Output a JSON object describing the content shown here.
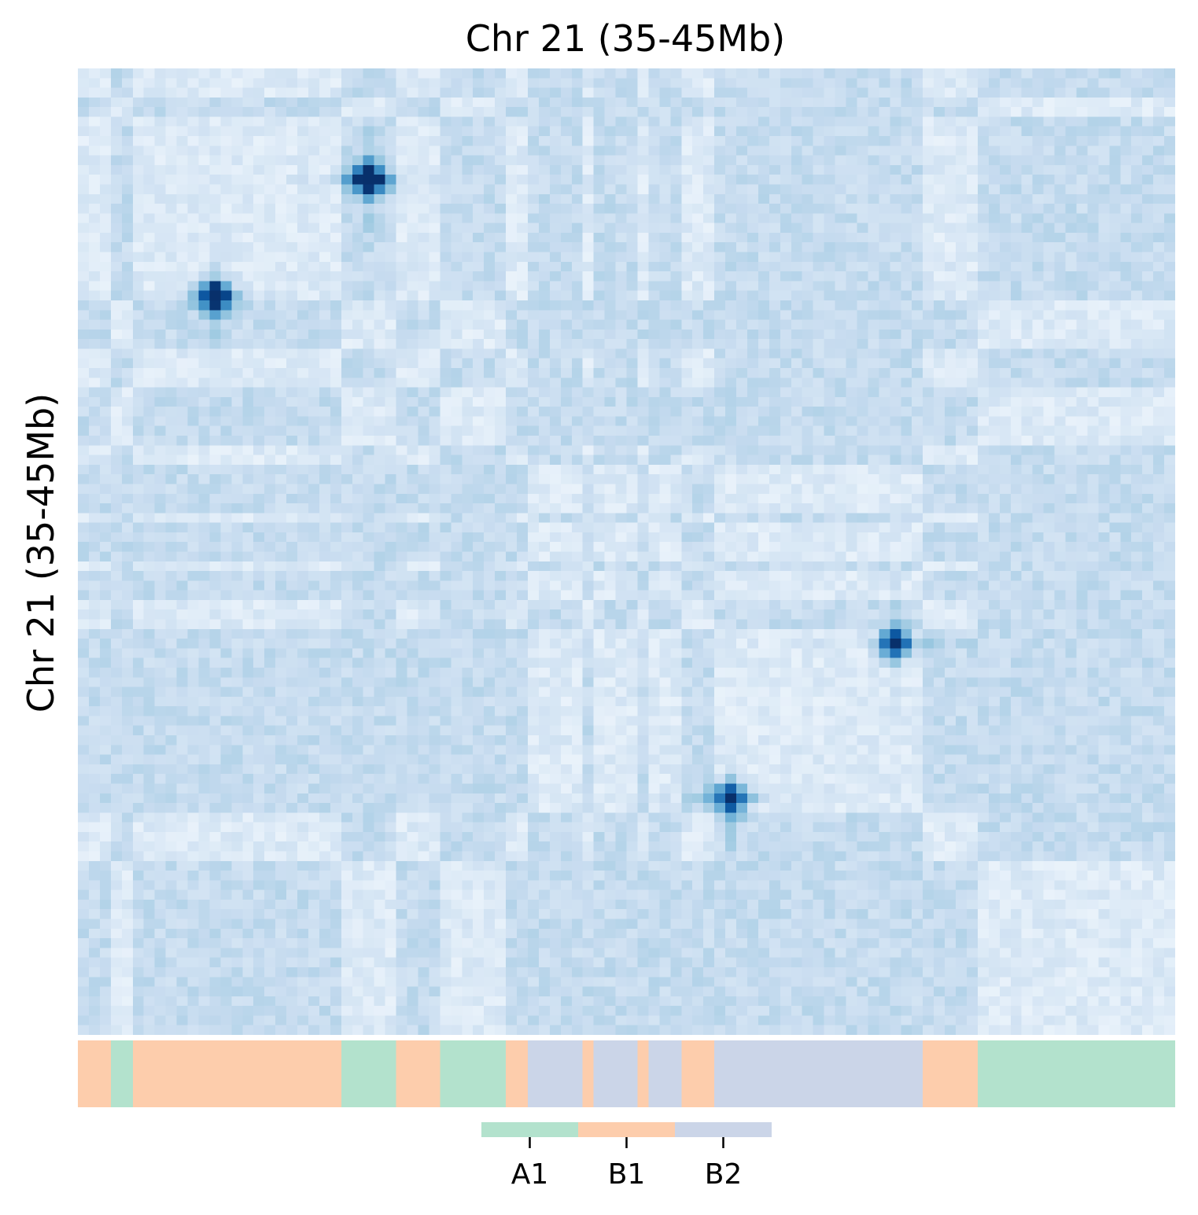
{
  "chart_data": {
    "type": "heatmap",
    "title": "Chr 21 (35-45Mb)",
    "xlabel": "",
    "ylabel": "Chr 21 (35-45Mb)",
    "colormap": "Blues",
    "grid": false,
    "matrix_size": 100,
    "hotspots": [
      {
        "row": 11,
        "col": 26,
        "intensity": 1.0
      },
      {
        "row": 23,
        "col": 12,
        "intensity": 1.0
      },
      {
        "row": 59,
        "col": 74,
        "intensity": 0.85
      },
      {
        "row": 75,
        "col": 59,
        "intensity": 0.85
      }
    ],
    "compartment_track": {
      "unit": "bins",
      "segments": [
        {
          "start": 0,
          "end": 3,
          "label": "B1"
        },
        {
          "start": 3,
          "end": 5,
          "label": "A1"
        },
        {
          "start": 5,
          "end": 24,
          "label": "B1"
        },
        {
          "start": 24,
          "end": 29,
          "label": "A1"
        },
        {
          "start": 29,
          "end": 33,
          "label": "B1"
        },
        {
          "start": 33,
          "end": 39,
          "label": "A1"
        },
        {
          "start": 39,
          "end": 41,
          "label": "B1"
        },
        {
          "start": 41,
          "end": 46,
          "label": "B2"
        },
        {
          "start": 46,
          "end": 47,
          "label": "B1"
        },
        {
          "start": 47,
          "end": 51,
          "label": "B2"
        },
        {
          "start": 51,
          "end": 52,
          "label": "B1"
        },
        {
          "start": 52,
          "end": 55,
          "label": "B2"
        },
        {
          "start": 55,
          "end": 58,
          "label": "B1"
        },
        {
          "start": 58,
          "end": 77,
          "label": "B2"
        },
        {
          "start": 77,
          "end": 82,
          "label": "B1"
        },
        {
          "start": 82,
          "end": 100,
          "label": "A1"
        }
      ]
    },
    "legend": {
      "placement": "bottom-center",
      "entries": [
        {
          "label": "A1",
          "color": "#b3e2cd"
        },
        {
          "label": "B1",
          "color": "#fdcdac"
        },
        {
          "label": "B2",
          "color": "#cbd5e8"
        }
      ]
    }
  }
}
